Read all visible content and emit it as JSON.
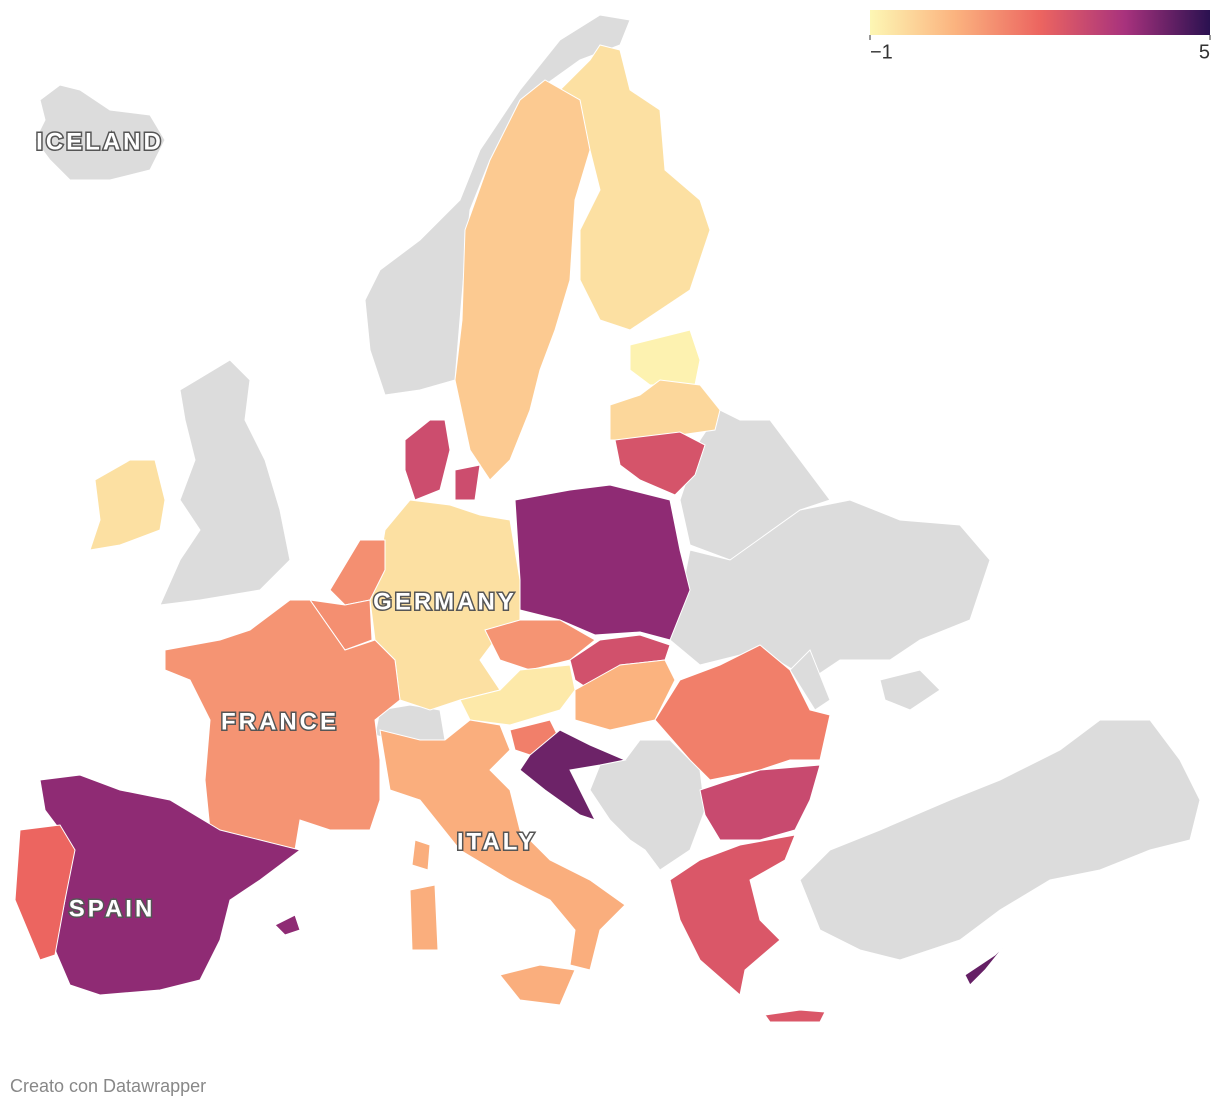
{
  "map": {
    "type": "choropleth",
    "scale": {
      "lim": [
        -1,
        5
      ],
      "ticks": [
        {
          "value": -1,
          "label": "−1"
        },
        5
      ],
      "colors": [
        "#fdf7b4",
        "#fbb37f",
        "#ec6560",
        "#a8327d",
        "#2a1150"
      ]
    },
    "missing_color": "#dcdcdc",
    "regions": {
      "values": [
        -0.5,
        -0.9,
        -0.3,
        2.5,
        0,
        2.7,
        -0.5,
        3.8,
        1.2,
        1.2,
        1.1,
        3.8,
        2.0,
        -0.5,
        1.1,
        -0.7,
        2.6,
        0.5,
        1.5,
        4.2,
        1.5,
        2.8,
        2.4,
        0.6,
        0.6,
        0.6,
        0.6,
        2.4,
        4.3,
        2.7,
        3.8
      ]
    },
    "labels": [
      "ICELAND",
      "GERMANY",
      "FRANCE",
      "ITALY",
      "SPAIN"
    ],
    "footer": "Creato con Datawrapper"
  }
}
